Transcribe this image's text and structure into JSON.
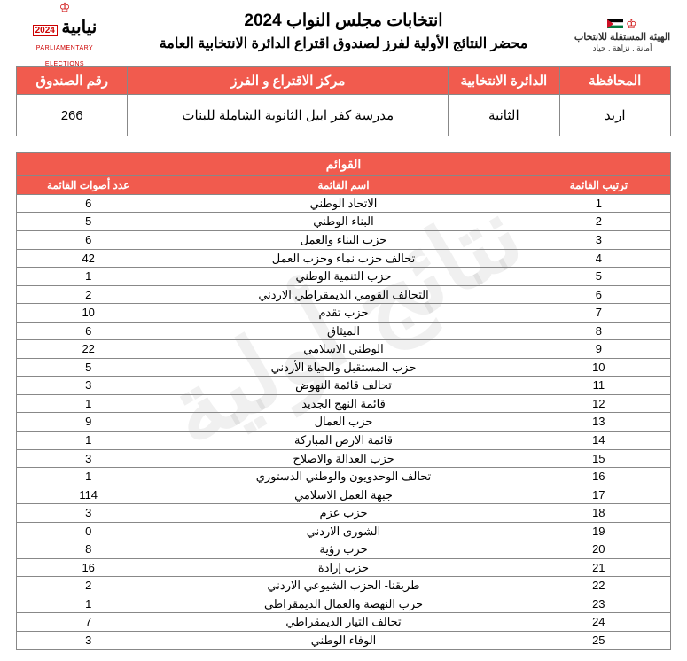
{
  "header": {
    "title1": "انتخابات مجلس النواب 2024",
    "title2": "محضر النتائج الأولية لفرز لصندوق اقتراع الدائرة الانتخابية العامة",
    "logo_right_ar": "الهيئة المستقلة للانتخاب",
    "logo_right_sub": "أمانة . نزاهة . حياد",
    "logo_left_brand": "نيابية",
    "logo_left_year": "2024",
    "logo_left_sub": "PARLIAMENTARY ELECTIONS"
  },
  "info": {
    "headers": {
      "governorate": "المحافظة",
      "district": "الدائرة الانتخابية",
      "center": "مركز الاقتراع و الفرز",
      "box": "رقم الصندوق"
    },
    "values": {
      "governorate": "اربد",
      "district": "الثانية",
      "center": "مدرسة كفر ابيل الثانوية الشاملة للبنات",
      "box": "266"
    }
  },
  "lists": {
    "section_title": "القوائم",
    "headers": {
      "rank": "ترتيب القائمة",
      "name": "اسم القائمة",
      "votes": "عدد أصوات القائمة"
    },
    "rows": [
      {
        "rank": "1",
        "name": "الاتحاد الوطني",
        "votes": "6"
      },
      {
        "rank": "2",
        "name": "البناء الوطني",
        "votes": "5"
      },
      {
        "rank": "3",
        "name": "حزب البناء والعمل",
        "votes": "6"
      },
      {
        "rank": "4",
        "name": "تحالف حزب نماء وحزب العمل",
        "votes": "42"
      },
      {
        "rank": "5",
        "name": "حزب التنمية الوطني",
        "votes": "1"
      },
      {
        "rank": "6",
        "name": "التحالف القومي الديمقراطي الاردني",
        "votes": "2"
      },
      {
        "rank": "7",
        "name": "حزب تقدم",
        "votes": "10"
      },
      {
        "rank": "8",
        "name": "الميثاق",
        "votes": "6"
      },
      {
        "rank": "9",
        "name": "الوطني الاسلامي",
        "votes": "22"
      },
      {
        "rank": "10",
        "name": "حزب المستقبل والحياة الأردني",
        "votes": "5"
      },
      {
        "rank": "11",
        "name": "تحالف قائمة النهوض",
        "votes": "3"
      },
      {
        "rank": "12",
        "name": "قائمة النهج الجديد",
        "votes": "1"
      },
      {
        "rank": "13",
        "name": "حزب العمال",
        "votes": "9"
      },
      {
        "rank": "14",
        "name": "قائمة الارض المباركة",
        "votes": "1"
      },
      {
        "rank": "15",
        "name": "حزب العدالة والاصلاح",
        "votes": "3"
      },
      {
        "rank": "16",
        "name": "تحالف الوحدويون والوطني الدستوري",
        "votes": "1"
      },
      {
        "rank": "17",
        "name": "جبهة العمل الاسلامي",
        "votes": "114"
      },
      {
        "rank": "18",
        "name": "حزب عزم",
        "votes": "3"
      },
      {
        "rank": "19",
        "name": "الشورى الاردني",
        "votes": "0"
      },
      {
        "rank": "20",
        "name": "حزب رؤية",
        "votes": "8"
      },
      {
        "rank": "21",
        "name": "حزب إرادة",
        "votes": "16"
      },
      {
        "rank": "22",
        "name": "طريقنا- الحزب الشيوعي الاردني",
        "votes": "2"
      },
      {
        "rank": "23",
        "name": "حزب النهضة والعمال الديمقراطي",
        "votes": "1"
      },
      {
        "rank": "24",
        "name": "تحالف التيار الديمقراطي",
        "votes": "7"
      },
      {
        "rank": "25",
        "name": "الوفاء الوطني",
        "votes": "3"
      }
    ]
  },
  "watermark": "نتائج أولية",
  "colors": {
    "accent": "#f15b4e",
    "border": "#888888"
  }
}
